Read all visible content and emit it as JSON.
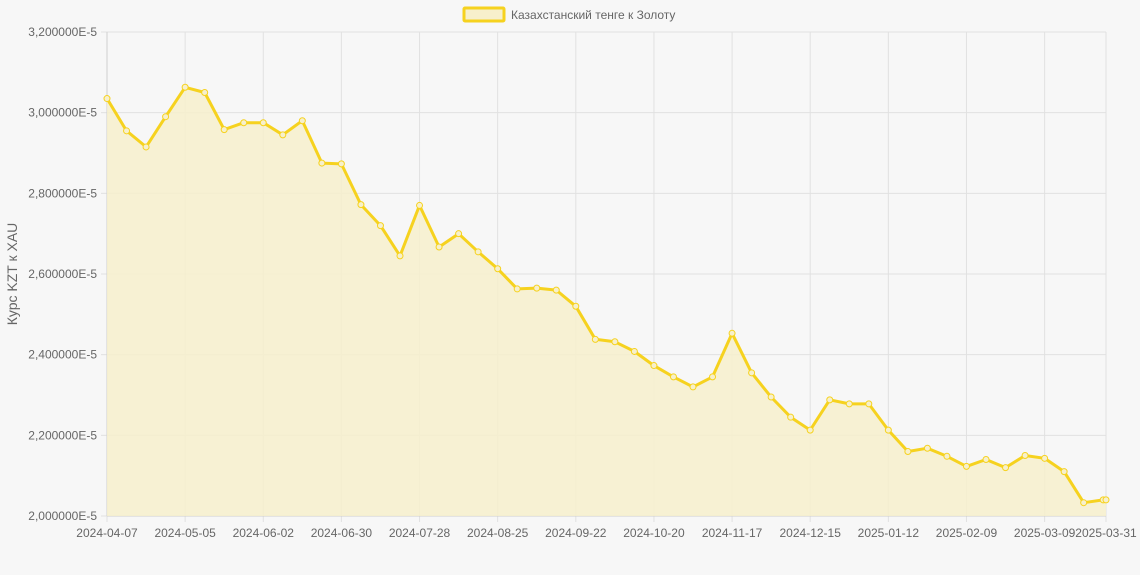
{
  "colors": {
    "line": "#f6d21f",
    "fill": "#f7f0cc",
    "grid": "#e1e1e1",
    "text": "#666666",
    "background": "#f7f7f7"
  },
  "chart_data": {
    "type": "area",
    "title": "",
    "legend": {
      "position": "top-center",
      "label": "Казахстанский тенге к Золоту"
    },
    "xlabel": "",
    "ylabel": "Курс KZT к XAU",
    "grid": true,
    "ylim": [
      2e-05,
      3.2e-05
    ],
    "y_ticks": [
      "2,000000E-5",
      "2,200000E-5",
      "2,400000E-5",
      "2,600000E-5",
      "2,800000E-5",
      "3,000000E-5",
      "3,200000E-5"
    ],
    "x_ticks": [
      "2024-04-07",
      "2024-05-05",
      "2024-06-02",
      "2024-06-30",
      "2024-07-28",
      "2024-08-25",
      "2024-09-22",
      "2024-10-20",
      "2024-11-17",
      "2024-12-15",
      "2025-01-12",
      "2025-02-09",
      "2025-03-09",
      "2025-03-31"
    ],
    "series": [
      {
        "name": "Казахстанский тенге к Золоту",
        "x": [
          "2024-04-07",
          "2024-04-14",
          "2024-04-21",
          "2024-04-28",
          "2024-05-05",
          "2024-05-12",
          "2024-05-19",
          "2024-05-26",
          "2024-06-02",
          "2024-06-09",
          "2024-06-16",
          "2024-06-23",
          "2024-06-30",
          "2024-07-07",
          "2024-07-14",
          "2024-07-21",
          "2024-07-28",
          "2024-08-04",
          "2024-08-11",
          "2024-08-18",
          "2024-08-25",
          "2024-09-01",
          "2024-09-08",
          "2024-09-15",
          "2024-09-22",
          "2024-09-29",
          "2024-10-06",
          "2024-10-13",
          "2024-10-20",
          "2024-10-27",
          "2024-11-03",
          "2024-11-10",
          "2024-11-17",
          "2024-11-24",
          "2024-12-01",
          "2024-12-08",
          "2024-12-15",
          "2024-12-22",
          "2024-12-29",
          "2025-01-05",
          "2025-01-12",
          "2025-01-19",
          "2025-01-26",
          "2025-02-02",
          "2025-02-09",
          "2025-02-16",
          "2025-02-23",
          "2025-03-02",
          "2025-03-09",
          "2025-03-16",
          "2025-03-23",
          "2025-03-30",
          "2025-03-31"
        ],
        "values": [
          3.035e-05,
          2.955e-05,
          2.915e-05,
          2.99e-05,
          3.063e-05,
          3.05e-05,
          2.958e-05,
          2.975e-05,
          2.975e-05,
          2.945e-05,
          2.98e-05,
          2.875e-05,
          2.873e-05,
          2.772e-05,
          2.72e-05,
          2.645e-05,
          2.77e-05,
          2.667e-05,
          2.7e-05,
          2.655e-05,
          2.613e-05,
          2.563e-05,
          2.565e-05,
          2.56e-05,
          2.52e-05,
          2.438e-05,
          2.432e-05,
          2.408e-05,
          2.373e-05,
          2.345e-05,
          2.32e-05,
          2.345e-05,
          2.453e-05,
          2.355e-05,
          2.295e-05,
          2.245e-05,
          2.213e-05,
          2.288e-05,
          2.278e-05,
          2.278e-05,
          2.213e-05,
          2.16e-05,
          2.168e-05,
          2.148e-05,
          2.123e-05,
          2.14e-05,
          2.12e-05,
          2.15e-05,
          2.143e-05,
          2.11e-05,
          2.033e-05,
          2.04e-05,
          2.04e-05
        ]
      }
    ]
  }
}
